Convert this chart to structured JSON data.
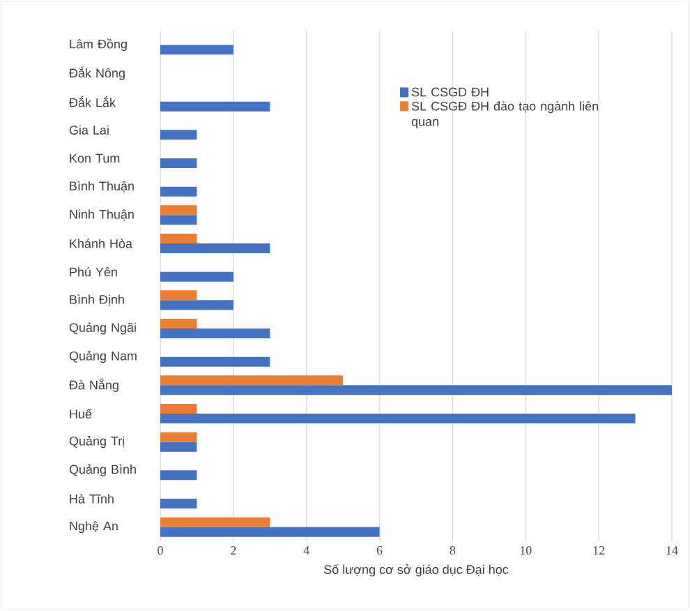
{
  "chart_data": {
    "type": "bar",
    "orientation": "horizontal",
    "xlabel": "Số lượng cơ sở giáo dục Đại học",
    "categories": [
      "Lâm Đồng",
      "Đắk Nông",
      "Đắk Lắk",
      "Gia Lai",
      "Kon Tum",
      "Bình Thuận",
      "Ninh Thuận",
      "Khánh Hòa",
      "Phú Yên",
      "Bình Định",
      "Quảng Ngãi",
      "Quảng Nam",
      "Đà Nẵng",
      "Huế",
      "Quảng Trị",
      "Quảng Bình",
      "Hà Tĩnh",
      "Nghệ An"
    ],
    "series": [
      {
        "name": "SL CSGD ĐH",
        "color": "#4472c4",
        "values": [
          2,
          0,
          3,
          1,
          1,
          1,
          1,
          3,
          2,
          2,
          3,
          3,
          14,
          13,
          1,
          1,
          1,
          6
        ]
      },
      {
        "name": "SL CSGĐ ĐH đào tạo ngành liên quan",
        "color": "#ed7d31",
        "values": [
          0,
          0,
          0,
          0,
          0,
          0,
          1,
          1,
          0,
          1,
          1,
          0,
          5,
          1,
          1,
          0,
          0,
          3
        ]
      }
    ],
    "xlim": [
      0,
      14
    ],
    "xticks": [
      0,
      2,
      4,
      6,
      8,
      10,
      12,
      14
    ],
    "grid": "x",
    "legend": "top right"
  }
}
